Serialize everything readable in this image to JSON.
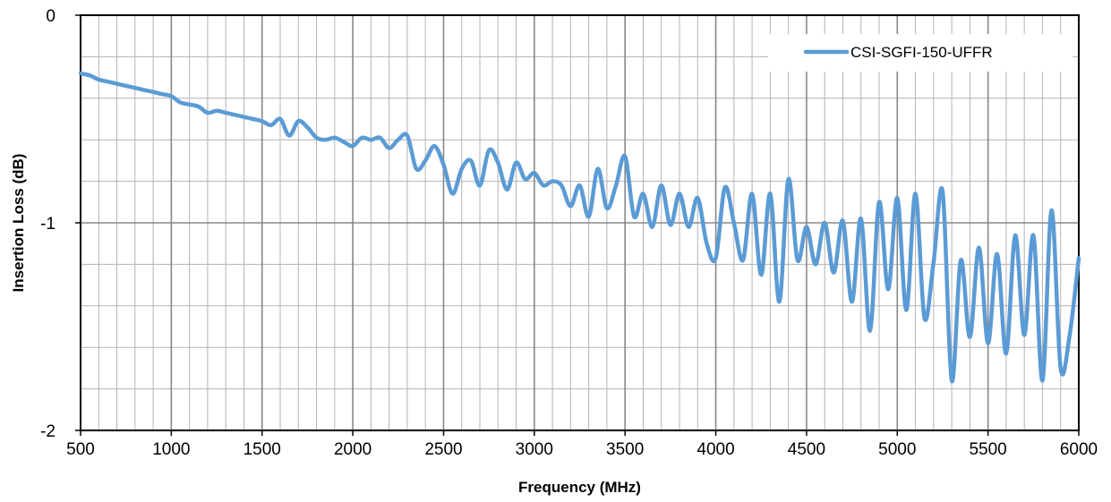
{
  "chart_data": {
    "type": "line",
    "title": "",
    "xlabel": "Frequency (MHz)",
    "ylabel": "Insertion Loss (dB)",
    "xlim": [
      500,
      6000
    ],
    "ylim": [
      -2,
      0
    ],
    "x_ticks": [
      500,
      1000,
      1500,
      2000,
      2500,
      3000,
      3500,
      4000,
      4500,
      5000,
      5500,
      6000
    ],
    "y_ticks": [
      0,
      -1,
      -2
    ],
    "x_minor_step": 100,
    "y_minor_step": 0.2,
    "grid": true,
    "legend_position": "top-right",
    "line_color": "#5B9BD5",
    "series": [
      {
        "name": "CSI-SGFI-150-UFFR",
        "points": [
          [
            500,
            -0.28
          ],
          [
            550,
            -0.29
          ],
          [
            600,
            -0.31
          ],
          [
            650,
            -0.32
          ],
          [
            700,
            -0.33
          ],
          [
            750,
            -0.34
          ],
          [
            800,
            -0.35
          ],
          [
            850,
            -0.36
          ],
          [
            900,
            -0.37
          ],
          [
            950,
            -0.38
          ],
          [
            1000,
            -0.39
          ],
          [
            1050,
            -0.42
          ],
          [
            1100,
            -0.43
          ],
          [
            1150,
            -0.44
          ],
          [
            1200,
            -0.47
          ],
          [
            1250,
            -0.46
          ],
          [
            1300,
            -0.47
          ],
          [
            1350,
            -0.48
          ],
          [
            1400,
            -0.49
          ],
          [
            1450,
            -0.5
          ],
          [
            1500,
            -0.51
          ],
          [
            1550,
            -0.53
          ],
          [
            1600,
            -0.5
          ],
          [
            1650,
            -0.58
          ],
          [
            1700,
            -0.51
          ],
          [
            1750,
            -0.54
          ],
          [
            1800,
            -0.59
          ],
          [
            1850,
            -0.6
          ],
          [
            1900,
            -0.59
          ],
          [
            1950,
            -0.61
          ],
          [
            2000,
            -0.63
          ],
          [
            2050,
            -0.59
          ],
          [
            2100,
            -0.6
          ],
          [
            2150,
            -0.59
          ],
          [
            2200,
            -0.64
          ],
          [
            2250,
            -0.6
          ],
          [
            2300,
            -0.58
          ],
          [
            2350,
            -0.74
          ],
          [
            2400,
            -0.7
          ],
          [
            2450,
            -0.63
          ],
          [
            2500,
            -0.72
          ],
          [
            2550,
            -0.86
          ],
          [
            2600,
            -0.74
          ],
          [
            2650,
            -0.7
          ],
          [
            2700,
            -0.82
          ],
          [
            2750,
            -0.65
          ],
          [
            2800,
            -0.71
          ],
          [
            2850,
            -0.84
          ],
          [
            2900,
            -0.71
          ],
          [
            2950,
            -0.79
          ],
          [
            3000,
            -0.76
          ],
          [
            3050,
            -0.82
          ],
          [
            3100,
            -0.8
          ],
          [
            3150,
            -0.82
          ],
          [
            3200,
            -0.92
          ],
          [
            3250,
            -0.82
          ],
          [
            3300,
            -0.97
          ],
          [
            3350,
            -0.74
          ],
          [
            3400,
            -0.93
          ],
          [
            3450,
            -0.82
          ],
          [
            3500,
            -0.68
          ],
          [
            3550,
            -0.97
          ],
          [
            3600,
            -0.86
          ],
          [
            3650,
            -1.02
          ],
          [
            3700,
            -0.82
          ],
          [
            3750,
            -1.01
          ],
          [
            3800,
            -0.86
          ],
          [
            3850,
            -1.02
          ],
          [
            3900,
            -0.88
          ],
          [
            3950,
            -1.1
          ],
          [
            4000,
            -1.17
          ],
          [
            4050,
            -0.83
          ],
          [
            4100,
            -1.0
          ],
          [
            4150,
            -1.18
          ],
          [
            4200,
            -0.86
          ],
          [
            4250,
            -1.25
          ],
          [
            4300,
            -0.86
          ],
          [
            4350,
            -1.38
          ],
          [
            4400,
            -0.79
          ],
          [
            4450,
            -1.18
          ],
          [
            4500,
            -1.02
          ],
          [
            4550,
            -1.2
          ],
          [
            4600,
            -1.0
          ],
          [
            4650,
            -1.24
          ],
          [
            4700,
            -0.99
          ],
          [
            4750,
            -1.38
          ],
          [
            4800,
            -0.98
          ],
          [
            4850,
            -1.52
          ],
          [
            4900,
            -0.9
          ],
          [
            4950,
            -1.32
          ],
          [
            5000,
            -0.88
          ],
          [
            5050,
            -1.42
          ],
          [
            5100,
            -0.86
          ],
          [
            5150,
            -1.46
          ],
          [
            5200,
            -1.19
          ],
          [
            5250,
            -0.85
          ],
          [
            5300,
            -1.76
          ],
          [
            5350,
            -1.18
          ],
          [
            5400,
            -1.55
          ],
          [
            5450,
            -1.12
          ],
          [
            5500,
            -1.58
          ],
          [
            5550,
            -1.15
          ],
          [
            5600,
            -1.63
          ],
          [
            5650,
            -1.06
          ],
          [
            5700,
            -1.54
          ],
          [
            5750,
            -1.06
          ],
          [
            5800,
            -1.76
          ],
          [
            5850,
            -0.94
          ],
          [
            5900,
            -1.7
          ],
          [
            5950,
            -1.54
          ],
          [
            6000,
            -1.17
          ]
        ]
      }
    ]
  }
}
